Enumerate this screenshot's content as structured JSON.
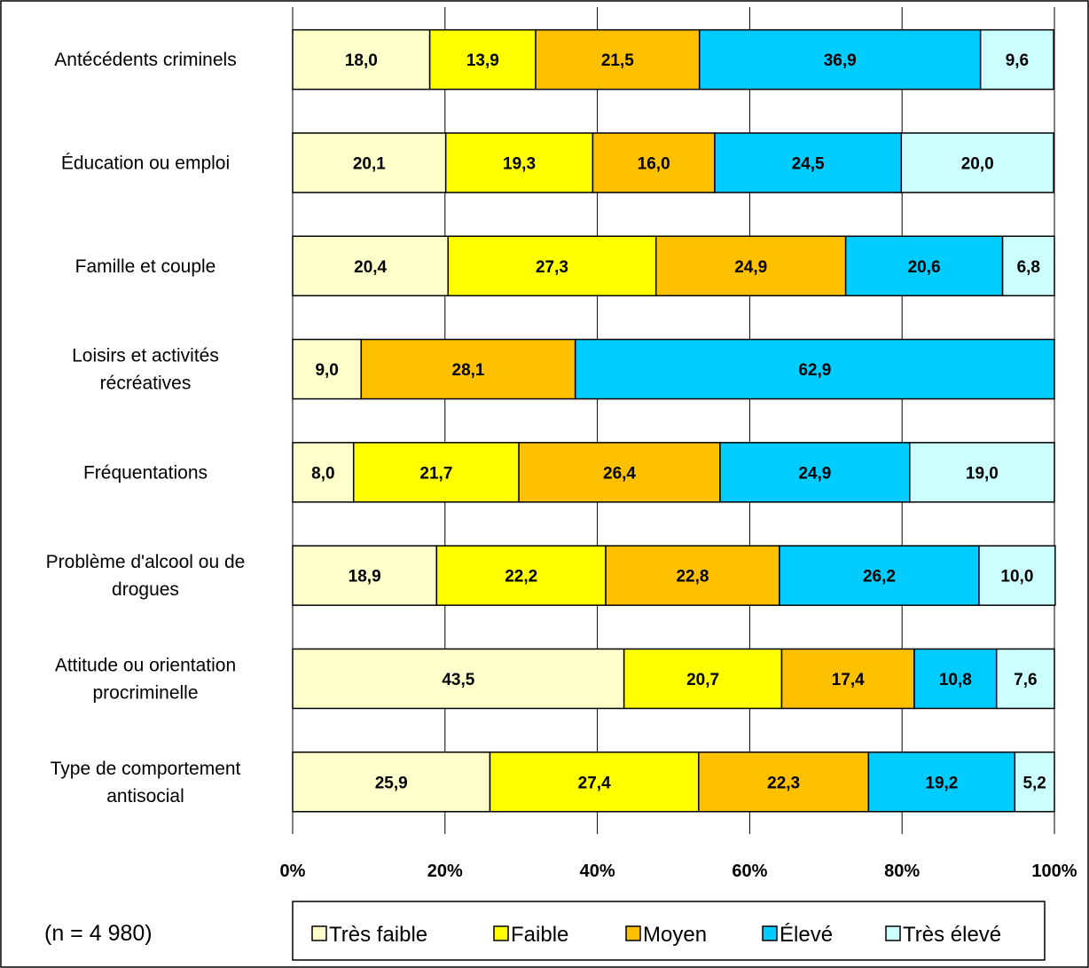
{
  "chart_data": {
    "type": "bar",
    "orientation": "horizontal",
    "stacked": "percent",
    "categories": [
      [
        "Antécédents criminels"
      ],
      [
        "Éducation ou emploi"
      ],
      [
        "Famille et couple"
      ],
      [
        "Loisirs et activités",
        "récréatives"
      ],
      [
        "Fréquentations"
      ],
      [
        "Problème d'alcool ou de",
        "drogues"
      ],
      [
        "Attitude ou orientation",
        "procriminelle"
      ],
      [
        "Type de comportement",
        "antisocial"
      ]
    ],
    "series": [
      {
        "name": "Très faible",
        "color": "#FFFFCC",
        "values": [
          18.0,
          20.1,
          20.4,
          9.0,
          8.0,
          18.9,
          43.5,
          25.9
        ],
        "labels": [
          "18,0",
          "20,1",
          "20,4",
          "9,0",
          "8,0",
          "18,9",
          "43,5",
          "25,9"
        ]
      },
      {
        "name": "Faible",
        "color": "#FFFF00",
        "values": [
          13.9,
          19.3,
          27.3,
          0,
          21.7,
          22.2,
          20.7,
          27.4
        ],
        "labels": [
          "13,9",
          "19,3",
          "27,3",
          "",
          "21,7",
          "22,2",
          "20,7",
          "27,4"
        ]
      },
      {
        "name": "Moyen",
        "color": "#FFC000",
        "values": [
          21.5,
          16.0,
          24.9,
          28.1,
          26.4,
          22.8,
          17.4,
          22.3
        ],
        "labels": [
          "21,5",
          "16,0",
          "24,9",
          "28,1",
          "26,4",
          "22,8",
          "17,4",
          "22,3"
        ]
      },
      {
        "name": "Élevé",
        "color": "#00CCFF",
        "values": [
          36.9,
          24.5,
          20.6,
          62.9,
          24.9,
          26.2,
          10.8,
          19.2
        ],
        "labels": [
          "36,9",
          "24,5",
          "20,6",
          "62,9",
          "24,9",
          "26,2",
          "10,8",
          "19,2"
        ]
      },
      {
        "name": "Très élevé",
        "color": "#CCFFFF",
        "values": [
          9.6,
          20.0,
          6.8,
          0,
          19.0,
          10.0,
          7.6,
          5.2
        ],
        "labels": [
          "9,6",
          "20,0",
          "6,8",
          "",
          "19,0",
          "10,0",
          "7,6",
          "5,2"
        ]
      }
    ],
    "xlim": [
      0,
      100
    ],
    "xticks": [
      "0%",
      "20%",
      "40%",
      "60%",
      "80%",
      "100%"
    ],
    "grid": true,
    "legend_position": "bottom"
  },
  "note": "(n = 4 980)"
}
